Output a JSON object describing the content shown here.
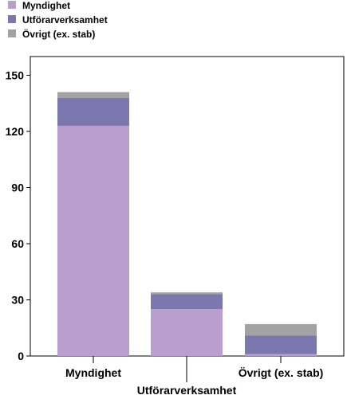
{
  "chart_data": {
    "type": "bar",
    "stacked": true,
    "categories": [
      "Myndighet",
      "Utförarverksamhet",
      "Övrigt (ex. stab)"
    ],
    "series": [
      {
        "name": "Myndighet",
        "color": "#b99fcd",
        "values": [
          123,
          25,
          1
        ]
      },
      {
        "name": "Utförarverksamhet",
        "color": "#7a78ae",
        "values": [
          15,
          8,
          10
        ]
      },
      {
        "name": "Övrigt (ex. stab)",
        "color": "#a2a2a2",
        "values": [
          3,
          1,
          6
        ]
      }
    ],
    "y_ticks": [
      "0",
      "30",
      "60",
      "90",
      "120",
      "150"
    ],
    "ylim": [
      0,
      160
    ],
    "legend_position": "top-left",
    "grid": false,
    "xlabel": "",
    "ylabel": ""
  }
}
